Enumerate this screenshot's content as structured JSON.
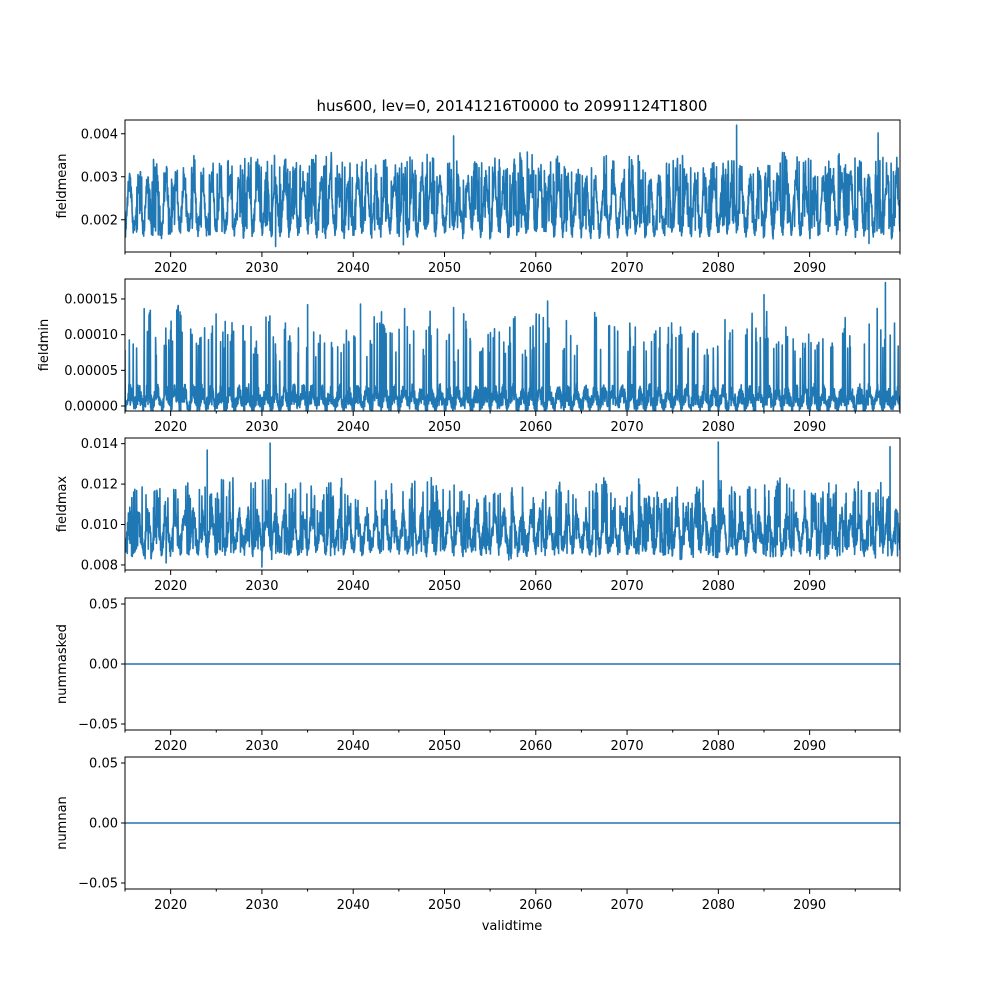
{
  "chart_data": {
    "type": "line",
    "title": "hus600, lev=0, 20141216T0000 to 20991124T1800",
    "xlabel": "validtime",
    "xlim": [
      2015.0,
      2099.9
    ],
    "x_ticks": [
      2020,
      2030,
      2040,
      2050,
      2060,
      2070,
      2080,
      2090
    ],
    "x_tick_labels": [
      "2020",
      "2030",
      "2040",
      "2050",
      "2060",
      "2070",
      "2080",
      "2090"
    ],
    "x_minor_ticks": [
      2015,
      2025,
      2035,
      2045,
      2055,
      2065,
      2075,
      2085,
      2095
    ],
    "color": "#1f77b4",
    "panels": [
      {
        "ylabel": "fieldmean",
        "ylim": [
          0.00125,
          0.00432
        ],
        "yticks": [
          0.002,
          0.003,
          0.004
        ],
        "ytick_labels": [
          "0.002",
          "0.003",
          "0.004"
        ],
        "profile": {
          "base_low": 0.0018,
          "base_high": 0.0029,
          "typical_peak": 0.0034,
          "typical_trough": 0.0017,
          "noise": 0.00025,
          "extremes": [
            [
              2082.0,
              0.0042
            ],
            [
              2051.0,
              0.00395
            ],
            [
              2097.5,
              0.00402
            ],
            [
              2031.5,
              0.00138
            ],
            [
              2045.5,
              0.00142
            ],
            [
              2096.5,
              0.00145
            ]
          ]
        }
      },
      {
        "ylabel": "fieldmin",
        "ylim": [
          -7e-06,
          0.000178
        ],
        "yticks": [
          0.0,
          5e-05,
          0.0001,
          0.00015
        ],
        "ytick_labels": [
          "0.00000",
          "0.00005",
          "0.00010",
          "0.00015"
        ],
        "profile": {
          "base_low": 5e-07,
          "base_high": 2e-05,
          "typical_peak": 0.00011,
          "typical_trough": 3e-07,
          "noise": 1.2e-05,
          "extremes": [
            [
              2098.3,
              0.000173
            ],
            [
              2085.0,
              0.000156
            ],
            [
              2061.3,
              0.000147
            ],
            [
              2040.8,
              0.000143
            ],
            [
              2035.0,
              0.000142
            ],
            [
              2051.0,
              0.000138
            ]
          ]
        }
      },
      {
        "ylabel": "fieldmax",
        "ylim": [
          0.00775,
          0.01428
        ],
        "yticks": [
          0.008,
          0.01,
          0.012,
          0.014
        ],
        "ytick_labels": [
          "0.008",
          "0.010",
          "0.012",
          "0.014"
        ],
        "profile": {
          "base_low": 0.0089,
          "base_high": 0.0104,
          "typical_peak": 0.0118,
          "typical_trough": 0.0085,
          "noise": 0.0005,
          "extremes": [
            [
              2030.9,
              0.01403
            ],
            [
              2080.0,
              0.01408
            ],
            [
              2098.8,
              0.01385
            ],
            [
              2024.0,
              0.01368
            ],
            [
              2030.0,
              0.0079
            ],
            [
              2019.5,
              0.0081
            ]
          ]
        }
      },
      {
        "ylabel": "nummasked",
        "ylim": [
          -0.055,
          0.055
        ],
        "yticks": [
          -0.05,
          0.0,
          0.05
        ],
        "ytick_labels": [
          "−0.05",
          "0.00",
          "0.05"
        ],
        "constant": 0.0
      },
      {
        "ylabel": "numnan",
        "ylim": [
          -0.055,
          0.055
        ],
        "yticks": [
          -0.05,
          0.0,
          0.05
        ],
        "ytick_labels": [
          "−0.05",
          "0.00",
          "0.05"
        ],
        "constant": 0.0
      }
    ]
  }
}
